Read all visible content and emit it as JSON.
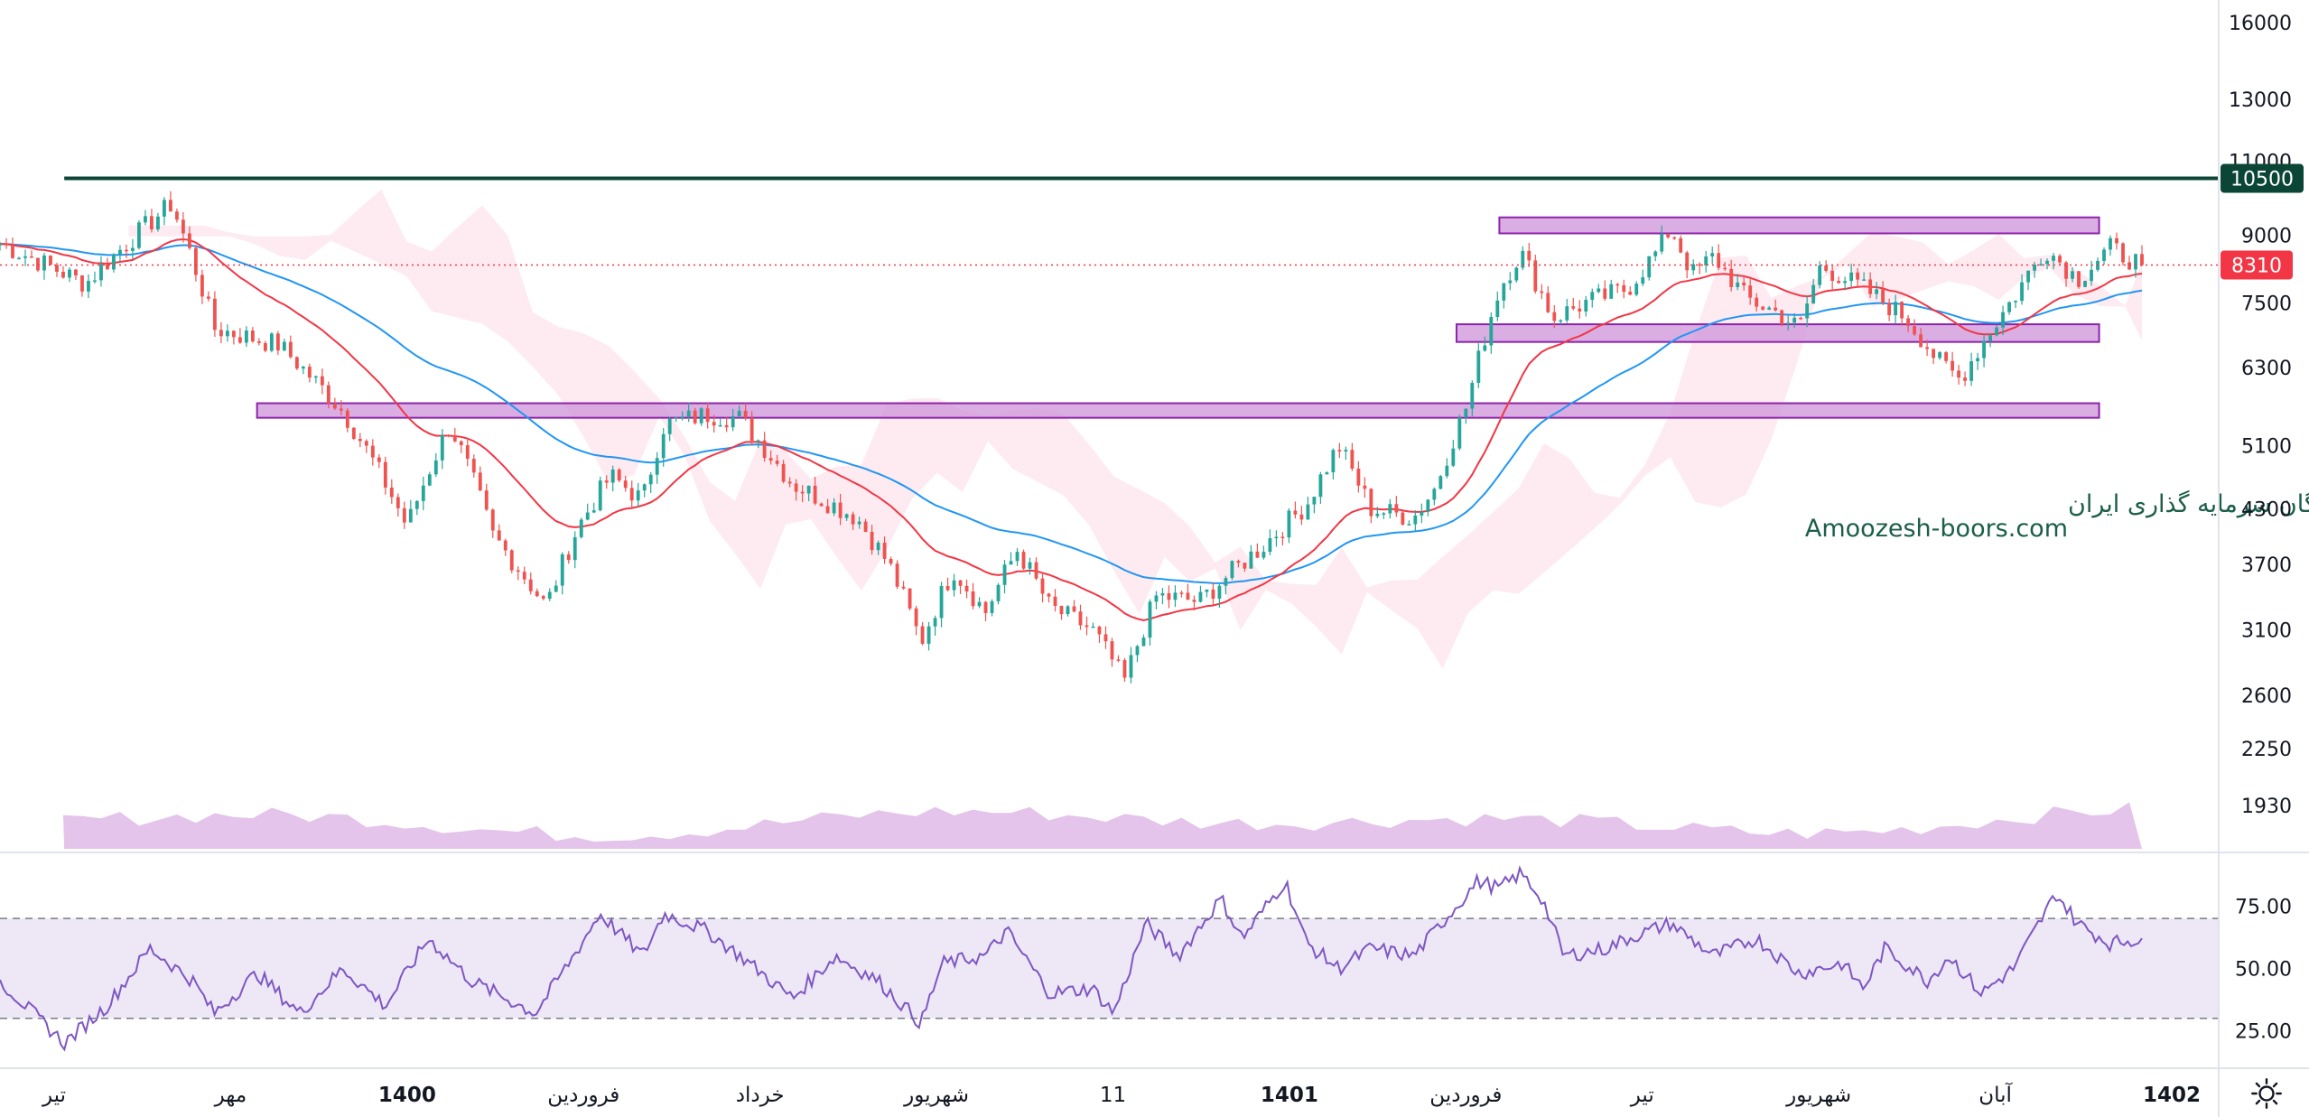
{
  "chart_data": [
    {
      "type": "candlestick",
      "scale": "log",
      "ylim": [
        1700,
        17000
      ],
      "price_ticks": [
        "16000",
        "13000",
        "11000",
        "9000",
        "7500",
        "6300",
        "5100",
        "4300",
        "3700",
        "3100",
        "2600",
        "2250",
        "1930"
      ],
      "time_labels": [
        {
          "text": "تیر",
          "bold": false
        },
        {
          "text": "مهر",
          "bold": false
        },
        {
          "text": "1400",
          "bold": true
        },
        {
          "text": "فروردین",
          "bold": false
        },
        {
          "text": "خرداد",
          "bold": false
        },
        {
          "text": "شهریور",
          "bold": false
        },
        {
          "text": "11",
          "bold": false
        },
        {
          "text": "1401",
          "bold": true
        },
        {
          "text": "فروردین",
          "bold": false
        },
        {
          "text": "تیر",
          "bold": false
        },
        {
          "text": "شهریور",
          "bold": false
        },
        {
          "text": "آبان",
          "bold": false
        },
        {
          "text": "1402",
          "bold": true
        }
      ],
      "key_levels": {
        "resistance_label": "10500",
        "resistance_value": 10500,
        "last_price_label": "8310",
        "last_price_value": 8310
      },
      "zones": [
        {
          "from": 5500,
          "to": 5720,
          "index_range": [
            0.12,
            0.98
          ]
        },
        {
          "from": 6750,
          "to": 7080,
          "index_range": [
            0.68,
            0.98
          ]
        },
        {
          "from": 9050,
          "to": 9450,
          "index_range": [
            0.7,
            0.98
          ]
        }
      ],
      "price_path": [
        [
          0.0,
          8800
        ],
        [
          0.04,
          7900
        ],
        [
          0.08,
          9800
        ],
        [
          0.1,
          7000
        ],
        [
          0.13,
          6700
        ],
        [
          0.16,
          5600
        ],
        [
          0.19,
          4100
        ],
        [
          0.21,
          5400
        ],
        [
          0.23,
          4000
        ],
        [
          0.255,
          3300
        ],
        [
          0.27,
          4100
        ],
        [
          0.285,
          4700
        ],
        [
          0.3,
          4400
        ],
        [
          0.31,
          5400
        ],
        [
          0.33,
          5550
        ],
        [
          0.345,
          5500
        ],
        [
          0.37,
          4600
        ],
        [
          0.4,
          4200
        ],
        [
          0.415,
          3700
        ],
        [
          0.43,
          3000
        ],
        [
          0.445,
          3650
        ],
        [
          0.46,
          3250
        ],
        [
          0.475,
          3850
        ],
        [
          0.49,
          3300
        ],
        [
          0.51,
          3100
        ],
        [
          0.525,
          2700
        ],
        [
          0.54,
          3400
        ],
        [
          0.56,
          3350
        ],
        [
          0.59,
          3900
        ],
        [
          0.61,
          4350
        ],
        [
          0.625,
          5100
        ],
        [
          0.64,
          4300
        ],
        [
          0.66,
          4200
        ],
        [
          0.67,
          4550
        ],
        [
          0.685,
          5700
        ],
        [
          0.7,
          7800
        ],
        [
          0.71,
          8600
        ],
        [
          0.725,
          7200
        ],
        [
          0.74,
          7500
        ],
        [
          0.76,
          7800
        ],
        [
          0.775,
          8700
        ],
        [
          0.78,
          9200
        ],
        [
          0.79,
          8100
        ],
        [
          0.8,
          8500
        ],
        [
          0.815,
          7600
        ],
        [
          0.83,
          7300
        ],
        [
          0.84,
          7000
        ],
        [
          0.85,
          8300
        ],
        [
          0.87,
          7800
        ],
        [
          0.89,
          7200
        ],
        [
          0.905,
          6400
        ],
        [
          0.915,
          6100
        ],
        [
          0.925,
          6700
        ],
        [
          0.94,
          7600
        ],
        [
          0.955,
          8700
        ],
        [
          0.97,
          8000
        ],
        [
          0.985,
          8700
        ],
        [
          1.0,
          8310
        ]
      ],
      "ema_fast_color": "#f23645",
      "ema_slow_color": "#2196f3",
      "volume_color": "#9c27b0",
      "rsi": {
        "ticks": [
          "75.00",
          "50.00",
          "25.00"
        ],
        "ylim": [
          10,
          95
        ],
        "overbought": 70,
        "oversold": 30,
        "line_color": "#7e57c2",
        "band_color": "#ede7f6",
        "path": [
          [
            0.0,
            45
          ],
          [
            0.03,
            20
          ],
          [
            0.05,
            35
          ],
          [
            0.07,
            58
          ],
          [
            0.09,
            45
          ],
          [
            0.1,
            32
          ],
          [
            0.12,
            48
          ],
          [
            0.14,
            32
          ],
          [
            0.16,
            50
          ],
          [
            0.18,
            35
          ],
          [
            0.2,
            62
          ],
          [
            0.22,
            45
          ],
          [
            0.25,
            32
          ],
          [
            0.27,
            58
          ],
          [
            0.28,
            72
          ],
          [
            0.3,
            55
          ],
          [
            0.31,
            72
          ],
          [
            0.33,
            65
          ],
          [
            0.35,
            52
          ],
          [
            0.37,
            38
          ],
          [
            0.39,
            55
          ],
          [
            0.41,
            45
          ],
          [
            0.43,
            28
          ],
          [
            0.44,
            52
          ],
          [
            0.46,
            55
          ],
          [
            0.47,
            65
          ],
          [
            0.49,
            40
          ],
          [
            0.51,
            42
          ],
          [
            0.52,
            32
          ],
          [
            0.535,
            68
          ],
          [
            0.55,
            55
          ],
          [
            0.57,
            78
          ],
          [
            0.58,
            62
          ],
          [
            0.6,
            85
          ],
          [
            0.61,
            60
          ],
          [
            0.625,
            50
          ],
          [
            0.64,
            58
          ],
          [
            0.66,
            55
          ],
          [
            0.675,
            70
          ],
          [
            0.69,
            85
          ],
          [
            0.7,
            82
          ],
          [
            0.71,
            88
          ],
          [
            0.72,
            78
          ],
          [
            0.73,
            55
          ],
          [
            0.75,
            58
          ],
          [
            0.76,
            62
          ],
          [
            0.78,
            68
          ],
          [
            0.8,
            55
          ],
          [
            0.82,
            62
          ],
          [
            0.84,
            48
          ],
          [
            0.86,
            52
          ],
          [
            0.87,
            42
          ],
          [
            0.88,
            58
          ],
          [
            0.9,
            45
          ],
          [
            0.91,
            55
          ],
          [
            0.925,
            40
          ],
          [
            0.94,
            50
          ],
          [
            0.96,
            80
          ],
          [
            0.97,
            68
          ],
          [
            0.985,
            60
          ],
          [
            1.0,
            62
          ]
        ]
      }
    }
  ],
  "watermark": {
    "line1": "انجمن خبرگان سرمایه گذاری ایران",
    "line2": "Amoozesh-boors.com",
    "color": "#1b5e4a"
  },
  "colors": {
    "up": "#26a69a",
    "down": "#ef5350",
    "resistance": "#0b4536",
    "zone_fill": "#ce93d8",
    "zone_stroke": "#8e24aa",
    "last_price": "#f23645",
    "cloud_bear": "#fce4ec",
    "cloud_bull": "#e8f5e9"
  },
  "icons": {
    "settings": "gear-icon"
  }
}
